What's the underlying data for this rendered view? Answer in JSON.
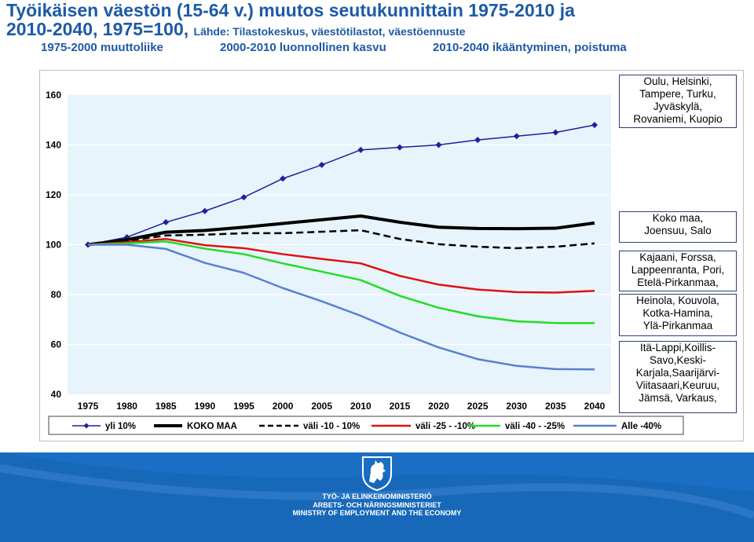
{
  "title_line1": "Työikäisen väestön (15-64 v.) muutos seutukunnittain 1975-2010 ja",
  "title_line2": "2010-2040, 1975=100,",
  "source": "Lähde: Tilastokeskus, väestötilastot, väestöennuste",
  "periods": [
    "1975-2000 muuttoliike",
    "2000-2010 luonnollinen kasvu",
    "2010-2040 ikääntyminen, poistuma"
  ],
  "chart_data": {
    "type": "line",
    "x": [
      1975,
      1980,
      1985,
      1990,
      1995,
      2000,
      2005,
      2010,
      2015,
      2020,
      2025,
      2030,
      2035,
      2040
    ],
    "ylim": [
      40,
      160
    ],
    "yticks": [
      40,
      60,
      80,
      100,
      120,
      140,
      160
    ],
    "grid": true,
    "legend": "bottom",
    "series": [
      {
        "name": "yli 10%",
        "color": "#1f1fa0",
        "style": "line-marker",
        "values": [
          100,
          103,
          109,
          113.5,
          119,
          126.5,
          132,
          138,
          139,
          140,
          142,
          143.5,
          145,
          148
        ]
      },
      {
        "name": "KOKO MAA",
        "color": "#000000",
        "style": "thick",
        "values": [
          100,
          102,
          105,
          105.7,
          107,
          108.5,
          110,
          111.5,
          109,
          107,
          106.5,
          106.4,
          106.6,
          108.7
        ]
      },
      {
        "name": "väli -10 - 10%",
        "color": "#000000",
        "style": "dashed",
        "values": [
          100,
          101.5,
          103.7,
          104,
          104.6,
          104.6,
          105.2,
          105.8,
          102.3,
          100.2,
          99.2,
          98.6,
          99.2,
          100.5
        ]
      },
      {
        "name": "väli -25 - -10%",
        "color": "#e01010",
        "style": "line",
        "values": [
          100,
          101,
          102.3,
          99.8,
          98.6,
          96.2,
          94.3,
          92.5,
          87.5,
          84,
          82,
          81,
          80.8,
          81.5
        ]
      },
      {
        "name": "väli -40 - -25%",
        "color": "#22dd22",
        "style": "line",
        "values": [
          100,
          100.5,
          101.3,
          98.4,
          96.2,
          92.5,
          89.2,
          85.8,
          79.5,
          74.7,
          71.3,
          69.3,
          68.6,
          68.6
        ]
      },
      {
        "name": "Alle -40%",
        "color": "#5a7fd0",
        "style": "line",
        "values": [
          100,
          100,
          98.3,
          92.7,
          88.7,
          82.6,
          77.3,
          71.5,
          64.8,
          58.8,
          54.1,
          51.4,
          50.1,
          50
        ]
      }
    ]
  },
  "region_labels": [
    {
      "series": "yli 10%",
      "lines": [
        "Oulu, Helsinki,",
        "Tampere, Turku,",
        "Jyväskylä,",
        "Rovaniemi, Kuopio"
      ]
    },
    {
      "series": "KOKO MAA",
      "lines": [
        "Koko maa,",
        "Joensuu, Salo"
      ]
    },
    {
      "series": "väli -25 - -10%",
      "lines": [
        "Kajaani, Forssa,",
        "Lappeenranta, Pori,",
        "Etelä-Pirkanmaa,"
      ]
    },
    {
      "series": "väli -40 - -25%",
      "lines": [
        "Heinola, Kouvola,",
        "Kotka-Hamina,",
        "Ylä-Pirkanmaa"
      ]
    },
    {
      "series": "Alle -40%",
      "lines": [
        "Itä-Lappi,Koillis-",
        "Savo,Keski-",
        "Karjala,Saarijärvi-",
        "Viitasaari,Keuruu,",
        "Jämsä, Varkaus,"
      ]
    }
  ],
  "ministry": {
    "line1": "TYÖ- JA ELINKEINOMINISTERIÖ",
    "line2": "ARBETS- OCH NÄRINGSMINISTERIET",
    "line3": "MINISTRY OF EMPLOYMENT AND THE ECONOMY"
  },
  "colors": {
    "title": "#1d5aa6",
    "footer": "#1a6fc4",
    "plot_bg": "#e7f4fb"
  },
  "icons": [
    "finnish-lion-emblem-icon"
  ]
}
